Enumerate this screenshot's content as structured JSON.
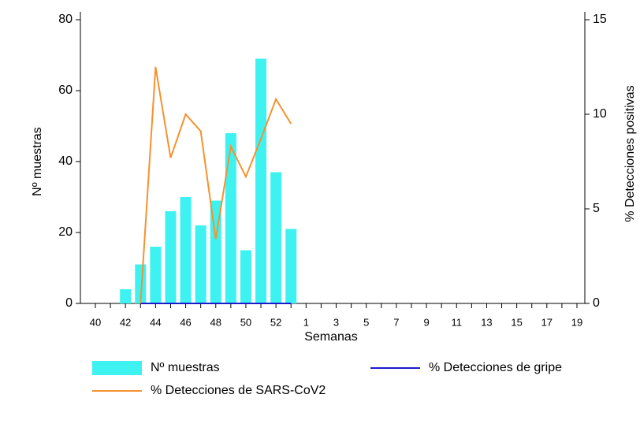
{
  "chart_data": {
    "type": "bar",
    "xlabel": "Semanas",
    "ylabel": "Nº muestras",
    "y2label": "% Detecciones positivas",
    "categories": [
      "40",
      null,
      "42",
      null,
      "44",
      null,
      "46",
      null,
      "48",
      null,
      "50",
      null,
      "52",
      null,
      "1",
      null,
      "3",
      null,
      "5",
      null,
      "7",
      null,
      "9",
      null,
      "11",
      null,
      "13",
      null,
      "15",
      null,
      "17",
      null,
      "19"
    ],
    "ylim": [
      0,
      80
    ],
    "yticks": [
      0,
      20,
      40,
      60,
      80
    ],
    "y2lim": [
      0,
      15
    ],
    "y2ticks": [
      0,
      5,
      10,
      15
    ],
    "series": [
      {
        "name": "Nº muestras",
        "type": "bar",
        "color": "#3ff2f2",
        "values": [
          null,
          null,
          4,
          11,
          16,
          26,
          30,
          22,
          29,
          48,
          15,
          69,
          37,
          21,
          null,
          null,
          null,
          null,
          null,
          null,
          null,
          null,
          null,
          null,
          null,
          null,
          null,
          null,
          null,
          null,
          null,
          null,
          null
        ]
      },
      {
        "name": "% Detecciones de gripe",
        "type": "line",
        "axis": "y2",
        "color": "#1a1acc",
        "values": [
          null,
          null,
          null,
          0,
          0,
          0,
          0,
          0,
          0,
          0,
          0,
          0,
          0,
          0,
          null,
          null,
          null,
          null,
          null,
          null,
          null,
          null,
          null,
          null,
          null,
          null,
          null,
          null,
          null,
          null,
          null,
          null,
          null
        ]
      },
      {
        "name": "% Detecciones de SARS-CoV2",
        "type": "line",
        "axis": "y2",
        "color": "#f5922f",
        "values": [
          null,
          null,
          null,
          0,
          12.5,
          7.7,
          10,
          9.1,
          3.4,
          8.3,
          6.7,
          8.7,
          10.8,
          9.5,
          null,
          null,
          null,
          null,
          null,
          null,
          null,
          null,
          null,
          null,
          null,
          null,
          null,
          null,
          null,
          null,
          null,
          null,
          null
        ]
      }
    ]
  }
}
